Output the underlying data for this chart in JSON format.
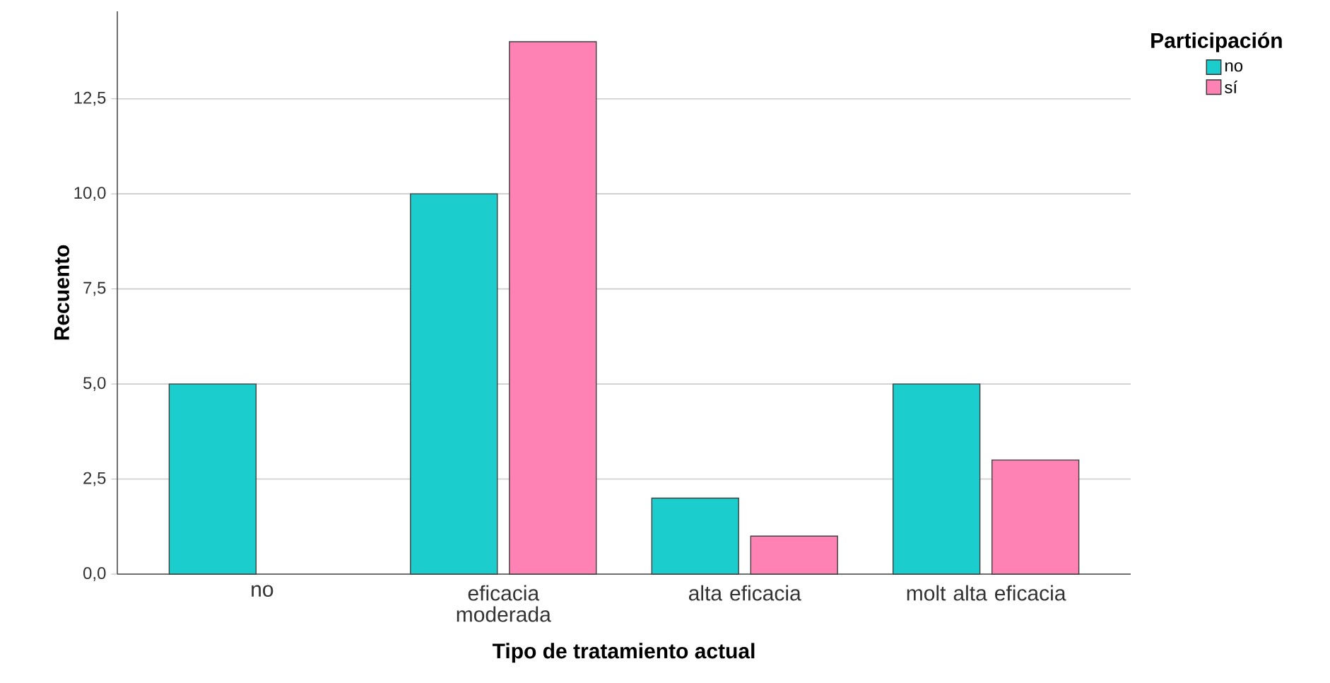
{
  "chart_data": {
    "type": "bar",
    "xlabel": "Tipo de tratamiento actual",
    "ylabel": "Recuento",
    "legend_title": "Participación",
    "categories": [
      "no",
      "eficacia moderada",
      "alta eficacia",
      "molt alta eficacia"
    ],
    "series": [
      {
        "name": "no",
        "color": "#1ccdcd",
        "values": [
          5,
          10,
          2,
          5
        ]
      },
      {
        "name": "sí",
        "color": "#fe82b4",
        "values": [
          null,
          14,
          1,
          3
        ]
      }
    ],
    "ylim": [
      0,
      14.8
    ],
    "yticks": [
      {
        "value": 0,
        "label": "0,0"
      },
      {
        "value": 2.5,
        "label": "2,5"
      },
      {
        "value": 5,
        "label": "5,0"
      },
      {
        "value": 7.5,
        "label": "7,5"
      },
      {
        "value": 10,
        "label": "10,0"
      },
      {
        "value": 12.5,
        "label": "12,5"
      }
    ],
    "grid": "y",
    "legend": "top right"
  }
}
